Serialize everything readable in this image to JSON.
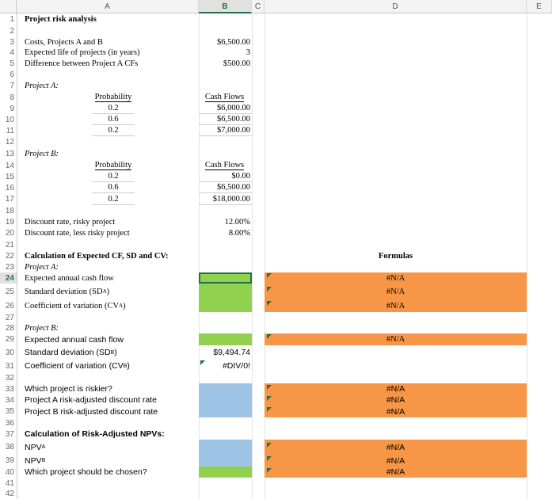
{
  "columns": [
    "A",
    "B",
    "C",
    "D",
    "E"
  ],
  "rows": {
    "r1": {
      "num": "1",
      "a": "Project risk analysis"
    },
    "r2": {
      "num": "2"
    },
    "r3": {
      "num": "3",
      "a": "Costs, Projects A and B",
      "b": "$6,500.00"
    },
    "r4": {
      "num": "4",
      "a": "Expected life of projects (in years)",
      "b": "3"
    },
    "r5": {
      "num": "5",
      "a": "Difference between Project A CFs",
      "b": "$500.00"
    },
    "r6": {
      "num": "6"
    },
    "r7": {
      "num": "7",
      "a": "Project A:"
    },
    "r8": {
      "num": "8",
      "a": "Probability",
      "b": "Cash Flows"
    },
    "r9": {
      "num": "9",
      "a": "0.2",
      "b": "$6,000.00"
    },
    "r10": {
      "num": "10",
      "a": "0.6",
      "b": "$6,500.00"
    },
    "r11": {
      "num": "11",
      "a": "0.2",
      "b": "$7,000.00"
    },
    "r12": {
      "num": "12"
    },
    "r13": {
      "num": "13",
      "a": "Project B:"
    },
    "r14": {
      "num": "14",
      "a": "Probability",
      "b": "Cash Flows"
    },
    "r15": {
      "num": "15",
      "a": "0.2",
      "b": "$0.00"
    },
    "r16": {
      "num": "16",
      "a": "0.6",
      "b": "$6,500.00"
    },
    "r17": {
      "num": "17",
      "a": "0.2",
      "b": "$18,000.00"
    },
    "r18": {
      "num": "18"
    },
    "r19": {
      "num": "19",
      "a": "Discount rate, risky project",
      "b": "12.00%"
    },
    "r20": {
      "num": "20",
      "a": "Discount rate, less risky project",
      "b": "8.00%"
    },
    "r21": {
      "num": "21"
    },
    "r22": {
      "num": "22",
      "a": "Calculation of Expected CF, SD and CV:",
      "d": "Formulas"
    },
    "r23": {
      "num": "23",
      "a": "Project A:"
    },
    "r24": {
      "num": "24",
      "a": "Expected annual cash flow",
      "d": "#N/A"
    },
    "r25": {
      "num": "25",
      "a": "Standard deviation (SDA)",
      "d": "#N/A"
    },
    "r26": {
      "num": "26",
      "a": "Coefficient of variation (CVA)",
      "d": "#N/A"
    },
    "r27": {
      "num": "27"
    },
    "r28": {
      "num": "28",
      "a": "Project B:"
    },
    "r29": {
      "num": "29",
      "a": "Expected annual cash flow",
      "d": "#N/A"
    },
    "r30": {
      "num": "30",
      "a": "Standard deviation (SDB)",
      "b": "$9,494.74"
    },
    "r31": {
      "num": "31",
      "a": "Coefficient of variation (CVB)",
      "b": "#DIV/0!"
    },
    "r32": {
      "num": "32"
    },
    "r33": {
      "num": "33",
      "a": "Which project is riskier?",
      "d": "#N/A"
    },
    "r34": {
      "num": "34",
      "a": "Project A risk-adjusted discount rate",
      "d": "#N/A"
    },
    "r35": {
      "num": "35",
      "a": "Project B risk-adjusted discount rate",
      "d": "#N/A"
    },
    "r36": {
      "num": "36"
    },
    "r37": {
      "num": "37",
      "a": "Calculation of Risk-Adjusted NPVs:"
    },
    "r38": {
      "num": "38",
      "a": "NPVA",
      "d": "#N/A"
    },
    "r39": {
      "num": "39",
      "a": "NPVB",
      "d": "#N/A"
    },
    "r40": {
      "num": "40",
      "a": "Which project should be chosen?",
      "d": "#N/A"
    },
    "r41": {
      "num": "41"
    },
    "r42": {
      "num": "42"
    }
  },
  "colors": {
    "green": "#92d050",
    "blue": "#9dc3e6",
    "orange": "#f79646",
    "excel_green": "#217346"
  }
}
